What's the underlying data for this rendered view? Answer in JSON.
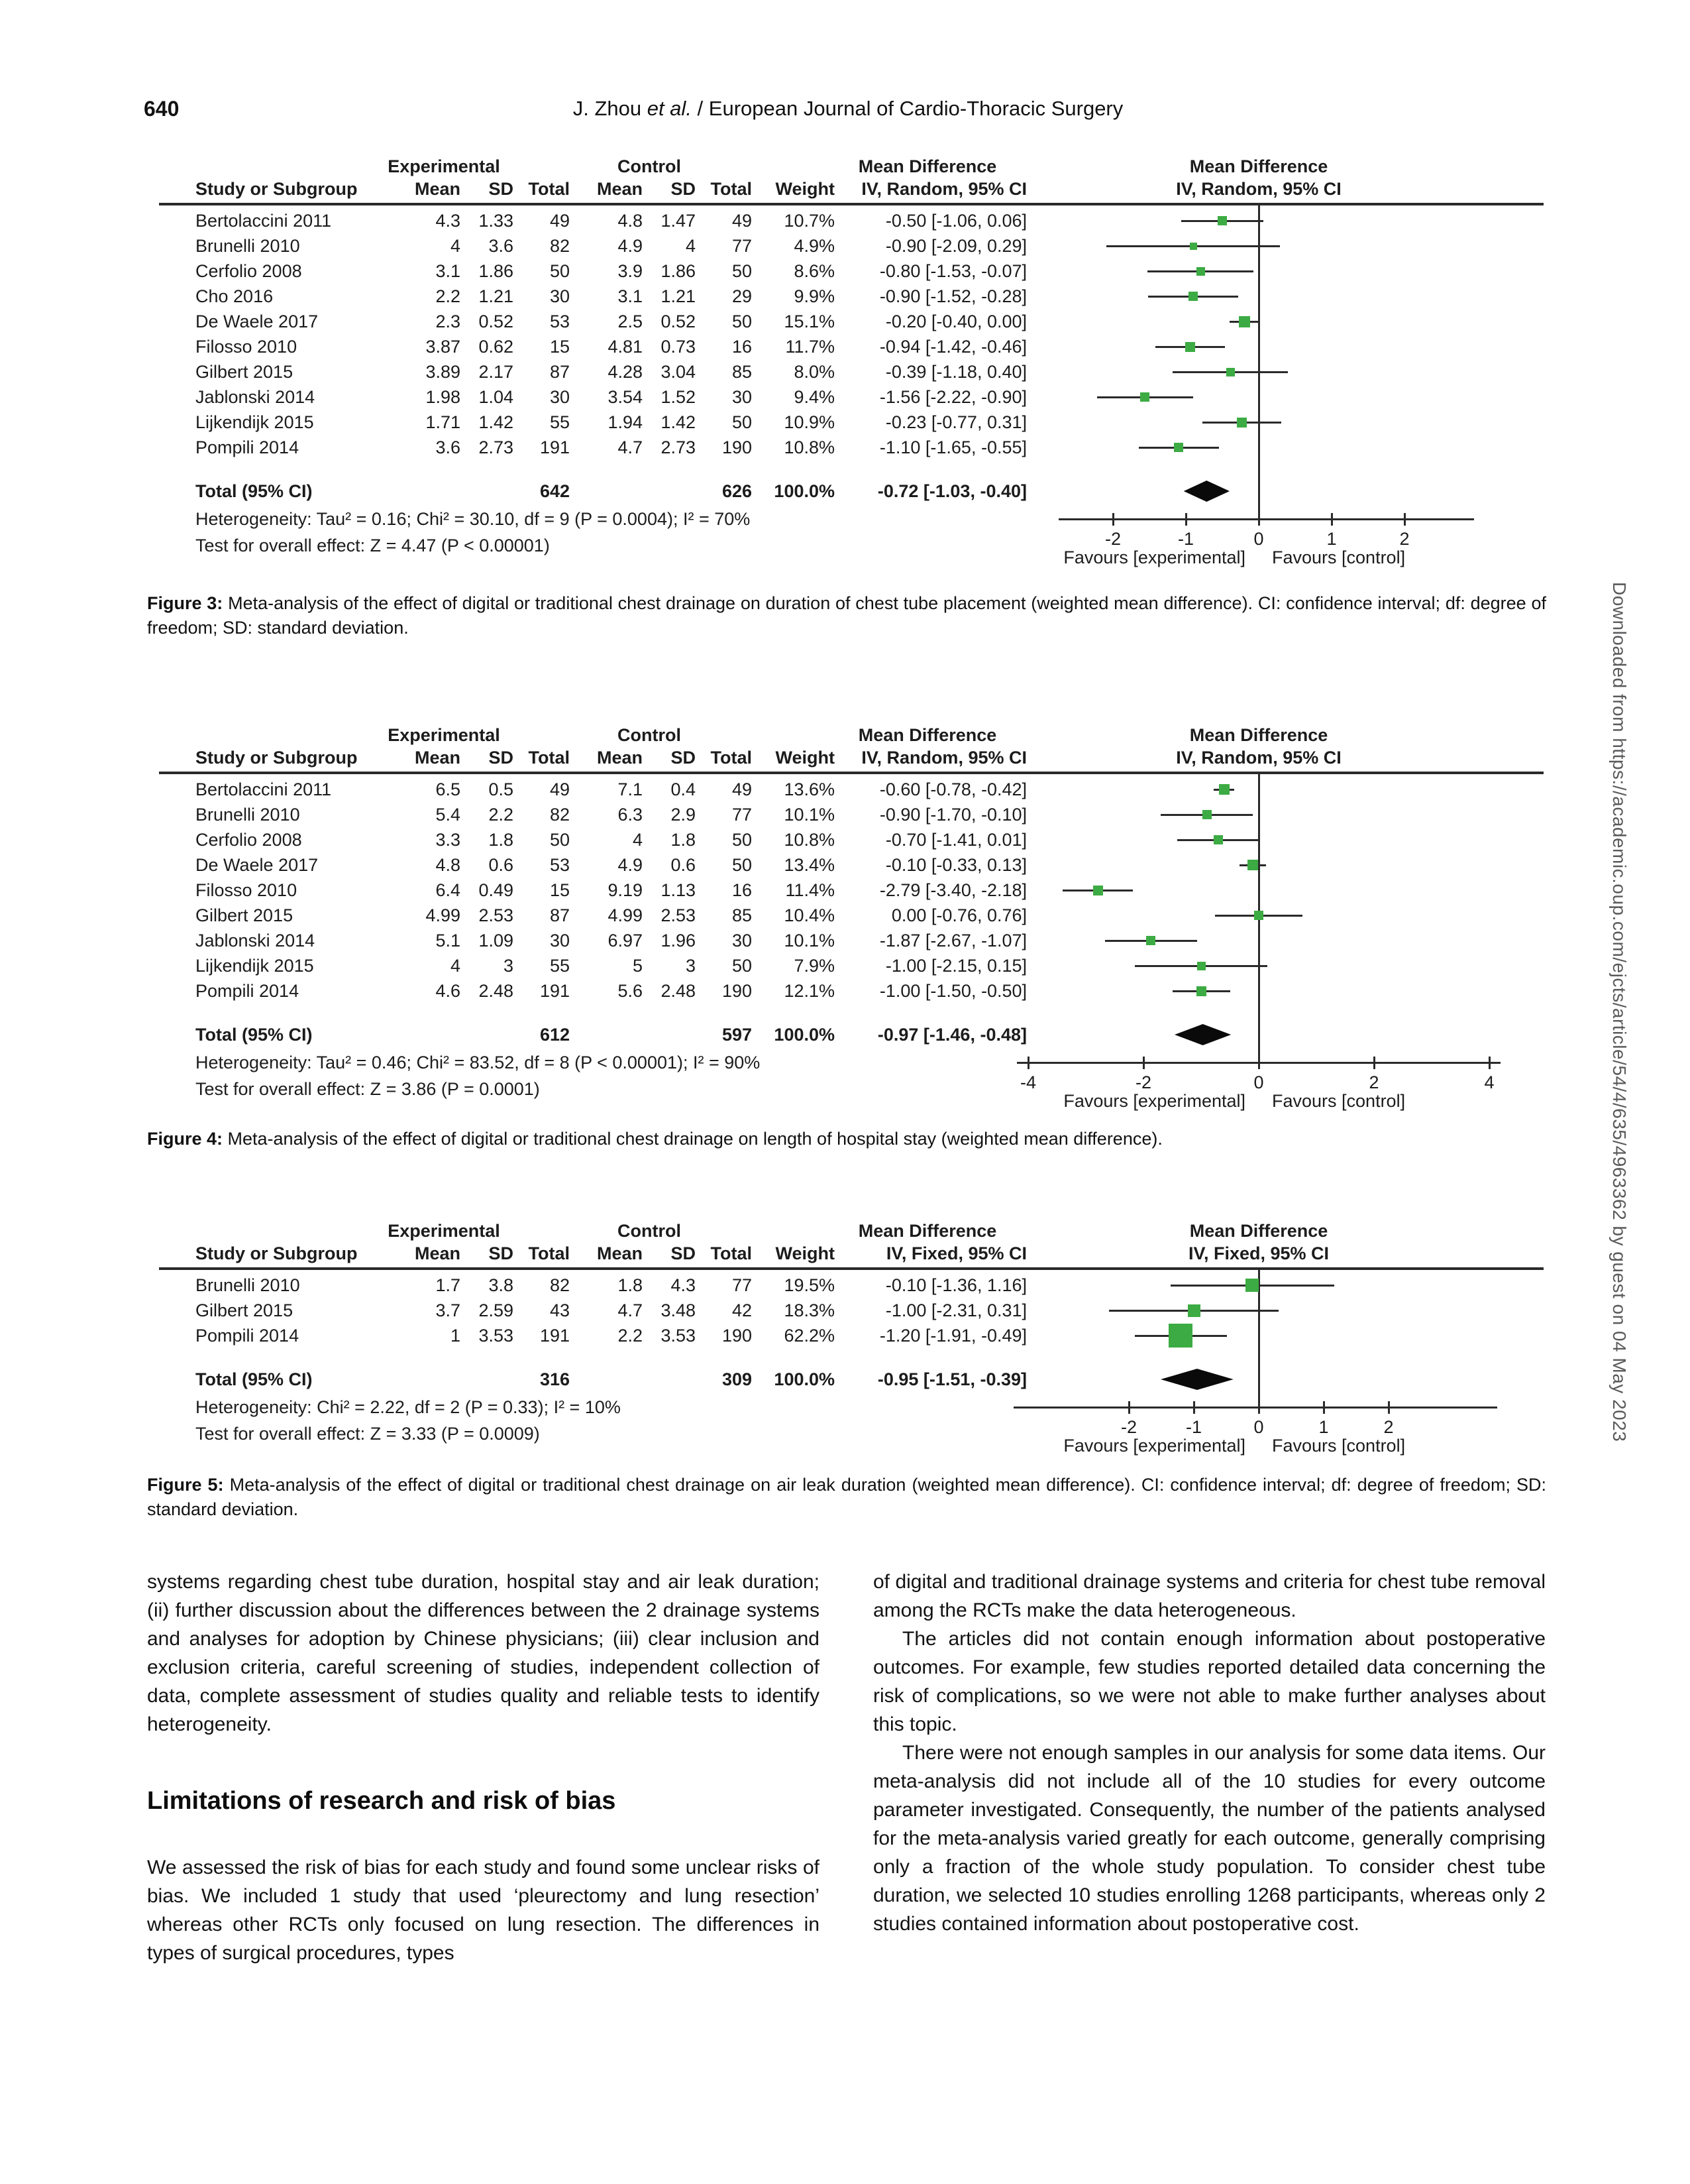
{
  "page": {
    "number": "640",
    "running_title_pre": "J. Zhou ",
    "running_title_italic": "et al.",
    "running_title_post": " / European Journal of Cardio-Thoracic Surgery",
    "sidebar_text": "Downloaded from https://academic.oup.com/ejcts/article/54/4/635/4963362 by guest on 04 May 2023"
  },
  "colors": {
    "marker_green": "#3cab43",
    "line_black": "#2a2a2a",
    "diamond_black": "#0a0a0a",
    "sidebar_gray": "#5a5a5c"
  },
  "forest_headers": {
    "group1": "Experimental",
    "group2": "Control",
    "md": "Mean Difference",
    "study": "Study or Subgroup",
    "mean": "Mean",
    "sd": "SD",
    "total": "Total",
    "weight": "Weight"
  },
  "figures": [
    {
      "id": "figure-3",
      "chart_type": "forest",
      "effect_label": "IV, Random, 95% CI",
      "studies": [
        {
          "name": "Bertolaccini 2011",
          "m1": "4.3",
          "sd1": "1.33",
          "t1": "49",
          "m2": "4.8",
          "sd2": "1.47",
          "t2": "49",
          "w": "10.7%",
          "ci": "-0.50 [-1.06, 0.06]",
          "est": -0.5,
          "lo": -1.06,
          "hi": 0.06,
          "weight": 10.7
        },
        {
          "name": "Brunelli 2010",
          "m1": "4",
          "sd1": "3.6",
          "t1": "82",
          "m2": "4.9",
          "sd2": "4",
          "t2": "77",
          "w": "4.9%",
          "ci": "-0.90 [-2.09, 0.29]",
          "est": -0.9,
          "lo": -2.09,
          "hi": 0.29,
          "weight": 4.9
        },
        {
          "name": "Cerfolio 2008",
          "m1": "3.1",
          "sd1": "1.86",
          "t1": "50",
          "m2": "3.9",
          "sd2": "1.86",
          "t2": "50",
          "w": "8.6%",
          "ci": "-0.80 [-1.53, -0.07]",
          "est": -0.8,
          "lo": -1.53,
          "hi": -0.07,
          "weight": 8.6
        },
        {
          "name": "Cho 2016",
          "m1": "2.2",
          "sd1": "1.21",
          "t1": "30",
          "m2": "3.1",
          "sd2": "1.21",
          "t2": "29",
          "w": "9.9%",
          "ci": "-0.90 [-1.52, -0.28]",
          "est": -0.9,
          "lo": -1.52,
          "hi": -0.28,
          "weight": 9.9
        },
        {
          "name": "De Waele 2017",
          "m1": "2.3",
          "sd1": "0.52",
          "t1": "53",
          "m2": "2.5",
          "sd2": "0.52",
          "t2": "50",
          "w": "15.1%",
          "ci": "-0.20 [-0.40, 0.00]",
          "est": -0.2,
          "lo": -0.4,
          "hi": 0.0,
          "weight": 15.1
        },
        {
          "name": "Filosso 2010",
          "m1": "3.87",
          "sd1": "0.62",
          "t1": "15",
          "m2": "4.81",
          "sd2": "0.73",
          "t2": "16",
          "w": "11.7%",
          "ci": "-0.94 [-1.42, -0.46]",
          "est": -0.94,
          "lo": -1.42,
          "hi": -0.46,
          "weight": 11.7
        },
        {
          "name": "Gilbert 2015",
          "m1": "3.89",
          "sd1": "2.17",
          "t1": "87",
          "m2": "4.28",
          "sd2": "3.04",
          "t2": "85",
          "w": "8.0%",
          "ci": "-0.39 [-1.18, 0.40]",
          "est": -0.39,
          "lo": -1.18,
          "hi": 0.4,
          "weight": 8.0
        },
        {
          "name": "Jablonski 2014",
          "m1": "1.98",
          "sd1": "1.04",
          "t1": "30",
          "m2": "3.54",
          "sd2": "1.52",
          "t2": "30",
          "w": "9.4%",
          "ci": "-1.56 [-2.22, -0.90]",
          "est": -1.56,
          "lo": -2.22,
          "hi": -0.9,
          "weight": 9.4
        },
        {
          "name": "Lijkendijk 2015",
          "m1": "1.71",
          "sd1": "1.42",
          "t1": "55",
          "m2": "1.94",
          "sd2": "1.42",
          "t2": "50",
          "w": "10.9%",
          "ci": "-0.23 [-0.77, 0.31]",
          "est": -0.23,
          "lo": -0.77,
          "hi": 0.31,
          "weight": 10.9
        },
        {
          "name": "Pompili 2014",
          "m1": "3.6",
          "sd1": "2.73",
          "t1": "191",
          "m2": "4.7",
          "sd2": "2.73",
          "t2": "190",
          "w": "10.8%",
          "ci": "-1.10 [-1.65, -0.55]",
          "est": -1.1,
          "lo": -1.65,
          "hi": -0.55,
          "weight": 10.8
        }
      ],
      "total": {
        "label": "Total (95% CI)",
        "t1": "642",
        "t2": "626",
        "w": "100.0%",
        "ci": "-0.72 [-1.03, -0.40]",
        "est": -0.72,
        "lo": -1.03,
        "hi": -0.4
      },
      "heterogeneity": "Heterogeneity: Tau² = 0.16; Chi² = 30.10, df = 9 (P = 0.0004); I² = 70%",
      "overall_effect": "Test for overall effect: Z = 4.47 (P < 0.00001)",
      "axis": {
        "ticks": [
          -2,
          -1,
          0,
          1,
          2
        ],
        "favours_left": "Favours [experimental]",
        "favours_right": "Favours [control]"
      },
      "caption_label": "Figure 3:",
      "caption_text": " Meta-analysis of the effect of digital or traditional chest drainage on duration of chest tube placement (weighted mean difference). CI: confidence interval; df: degree of freedom; SD: standard deviation."
    },
    {
      "id": "figure-4",
      "chart_type": "forest",
      "effect_label": "IV, Random, 95% CI",
      "studies": [
        {
          "name": "Bertolaccini 2011",
          "m1": "6.5",
          "sd1": "0.5",
          "t1": "49",
          "m2": "7.1",
          "sd2": "0.4",
          "t2": "49",
          "w": "13.6%",
          "ci": "-0.60 [-0.78, -0.42]",
          "est": -0.6,
          "lo": -0.78,
          "hi": -0.42,
          "weight": 13.6
        },
        {
          "name": "Brunelli 2010",
          "m1": "5.4",
          "sd1": "2.2",
          "t1": "82",
          "m2": "6.3",
          "sd2": "2.9",
          "t2": "77",
          "w": "10.1%",
          "ci": "-0.90 [-1.70, -0.10]",
          "est": -0.9,
          "lo": -1.7,
          "hi": -0.1,
          "weight": 10.1
        },
        {
          "name": "Cerfolio 2008",
          "m1": "3.3",
          "sd1": "1.8",
          "t1": "50",
          "m2": "4",
          "sd2": "1.8",
          "t2": "50",
          "w": "10.8%",
          "ci": "-0.70 [-1.41, 0.01]",
          "est": -0.7,
          "lo": -1.41,
          "hi": 0.01,
          "weight": 10.8
        },
        {
          "name": "De Waele 2017",
          "m1": "4.8",
          "sd1": "0.6",
          "t1": "53",
          "m2": "4.9",
          "sd2": "0.6",
          "t2": "50",
          "w": "13.4%",
          "ci": "-0.10 [-0.33, 0.13]",
          "est": -0.1,
          "lo": -0.33,
          "hi": 0.13,
          "weight": 13.4
        },
        {
          "name": "Filosso 2010",
          "m1": "6.4",
          "sd1": "0.49",
          "t1": "15",
          "m2": "9.19",
          "sd2": "1.13",
          "t2": "16",
          "w": "11.4%",
          "ci": "-2.79 [-3.40, -2.18]",
          "est": -2.79,
          "lo": -3.4,
          "hi": -2.18,
          "weight": 11.4
        },
        {
          "name": "Gilbert 2015",
          "m1": "4.99",
          "sd1": "2.53",
          "t1": "87",
          "m2": "4.99",
          "sd2": "2.53",
          "t2": "85",
          "w": "10.4%",
          "ci": "0.00 [-0.76, 0.76]",
          "est": 0.0,
          "lo": -0.76,
          "hi": 0.76,
          "weight": 10.4
        },
        {
          "name": "Jablonski 2014",
          "m1": "5.1",
          "sd1": "1.09",
          "t1": "30",
          "m2": "6.97",
          "sd2": "1.96",
          "t2": "30",
          "w": "10.1%",
          "ci": "-1.87 [-2.67, -1.07]",
          "est": -1.87,
          "lo": -2.67,
          "hi": -1.07,
          "weight": 10.1
        },
        {
          "name": "Lijkendijk 2015",
          "m1": "4",
          "sd1": "3",
          "t1": "55",
          "m2": "5",
          "sd2": "3",
          "t2": "50",
          "w": "7.9%",
          "ci": "-1.00 [-2.15, 0.15]",
          "est": -1.0,
          "lo": -2.15,
          "hi": 0.15,
          "weight": 7.9
        },
        {
          "name": "Pompili 2014",
          "m1": "4.6",
          "sd1": "2.48",
          "t1": "191",
          "m2": "5.6",
          "sd2": "2.48",
          "t2": "190",
          "w": "12.1%",
          "ci": "-1.00 [-1.50, -0.50]",
          "est": -1.0,
          "lo": -1.5,
          "hi": -0.5,
          "weight": 12.1
        }
      ],
      "total": {
        "label": "Total (95% CI)",
        "t1": "612",
        "t2": "597",
        "w": "100.0%",
        "ci": "-0.97 [-1.46, -0.48]",
        "est": -0.97,
        "lo": -1.46,
        "hi": -0.48
      },
      "heterogeneity": "Heterogeneity: Tau² = 0.46; Chi² = 83.52, df = 8 (P < 0.00001); I² = 90%",
      "overall_effect": "Test for overall effect: Z = 3.86 (P = 0.0001)",
      "axis": {
        "ticks": [
          -4,
          -2,
          0,
          2,
          4
        ],
        "favours_left": "Favours [experimental]",
        "favours_right": "Favours [control]"
      },
      "caption_label": "Figure 4:",
      "caption_text": " Meta-analysis of the effect of digital or traditional chest drainage on length of hospital stay (weighted mean difference)."
    },
    {
      "id": "figure-5",
      "chart_type": "forest",
      "effect_label": "IV, Fixed, 95% CI",
      "studies": [
        {
          "name": "Brunelli 2010",
          "m1": "1.7",
          "sd1": "3.8",
          "t1": "82",
          "m2": "1.8",
          "sd2": "4.3",
          "t2": "77",
          "w": "19.5%",
          "ci": "-0.10 [-1.36, 1.16]",
          "est": -0.1,
          "lo": -1.36,
          "hi": 1.16,
          "weight": 19.5
        },
        {
          "name": "Gilbert 2015",
          "m1": "3.7",
          "sd1": "2.59",
          "t1": "43",
          "m2": "4.7",
          "sd2": "3.48",
          "t2": "42",
          "w": "18.3%",
          "ci": "-1.00 [-2.31, 0.31]",
          "est": -1.0,
          "lo": -2.31,
          "hi": 0.31,
          "weight": 18.3
        },
        {
          "name": "Pompili 2014",
          "m1": "1",
          "sd1": "3.53",
          "t1": "191",
          "m2": "2.2",
          "sd2": "3.53",
          "t2": "190",
          "w": "62.2%",
          "ci": "-1.20 [-1.91, -0.49]",
          "est": -1.2,
          "lo": -1.91,
          "hi": -0.49,
          "weight": 62.2
        }
      ],
      "total": {
        "label": "Total (95% CI)",
        "t1": "316",
        "t2": "309",
        "w": "100.0%",
        "ci": "-0.95 [-1.51, -0.39]",
        "est": -0.95,
        "lo": -1.51,
        "hi": -0.39
      },
      "heterogeneity": "Heterogeneity: Chi² = 2.22, df = 2 (P = 0.33); I² = 10%",
      "overall_effect": "Test for overall effect: Z = 3.33 (P = 0.0009)",
      "axis": {
        "ticks": [
          -2,
          -1,
          0,
          1,
          2
        ],
        "favours_left": "Favours [experimental]",
        "favours_right": "Favours [control]"
      },
      "caption_label": "Figure 5:",
      "caption_text": " Meta-analysis of the effect of digital or traditional chest drainage on air leak duration (weighted mean difference). CI: confidence interval; df: degree of freedom; SD: standard deviation."
    }
  ],
  "body": {
    "left": {
      "p1": "systems regarding chest tube duration, hospital stay and air leak duration; (ii) further discussion about the differences between the 2 drainage systems and analyses for adoption by Chinese physicians; (iii) clear inclusion and exclusion criteria, careful screening of studies, independent collection of data, complete assessment of studies quality and reliable tests to identify heterogeneity.",
      "heading": "Limitations of research and risk of bias",
      "p2": "We assessed the risk of bias for each study and found some unclear risks of bias. We included 1 study that used ‘pleurectomy and lung resection’ whereas other RCTs only focused on lung resection. The differences in types of surgical procedures, types"
    },
    "right": {
      "p1": "of digital and traditional drainage systems and criteria for chest tube removal among the RCTs make the data heterogeneous.",
      "p2": "The articles did not contain enough information about postoperative outcomes. For example, few studies reported detailed data concerning the risk of complications, so we were not able to make further analyses about this topic.",
      "p3": "There were not enough samples in our analysis for some data items. Our meta-analysis did not include all of the 10 studies for every outcome parameter investigated. Consequently, the number of the patients analysed for the meta-analysis varied greatly for each outcome, generally comprising only a fraction of the whole study population. To consider chest tube duration, we selected 10 studies enrolling 1268 participants, whereas only 2 studies contained information about postoperative cost."
    }
  }
}
